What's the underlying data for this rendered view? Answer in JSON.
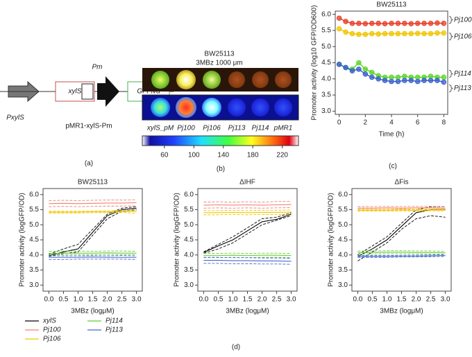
{
  "panel_labels": [
    "(a)",
    "(b)",
    "(c)",
    "(d)"
  ],
  "panel_a": {
    "genes": [
      "xylS",
      "GFPlva"
    ],
    "promoters": [
      "Pm",
      "PxylS"
    ],
    "plasmid": "pMR1-xylS-Pm"
  },
  "panel_b": {
    "title": "BW25113",
    "condition": "3MBz 1000 μm",
    "wells": [
      "xylS_pM",
      "Pj100",
      "Pj106",
      "Pj113",
      "Pj114",
      "pMR1"
    ],
    "colorbar": {
      "lim": [
        30,
        242
      ],
      "ticks": [
        60,
        100,
        140,
        180,
        220
      ]
    }
  },
  "chart_data": [
    {
      "type": "line",
      "title": "BW25113",
      "xlabel": "Time (h)",
      "ylabel": "Promoter activity (log10 GFP/OD600)",
      "legend": "right",
      "markers": true,
      "x": [
        0,
        0.5,
        1,
        1.5,
        2,
        2.5,
        3,
        3.5,
        4,
        4.5,
        5,
        5.5,
        6,
        6.5,
        7,
        7.5,
        8
      ],
      "xlim": [
        -0.3,
        8.3
      ],
      "xticks": [
        0,
        2,
        4,
        6,
        8
      ],
      "ylim": [
        2.9,
        6.1
      ],
      "yticks": [
        {
          "value": 3,
          "label": "3.0"
        },
        {
          "value": 3.5,
          "label": "3.5"
        },
        {
          "value": 4,
          "label": "4.0"
        },
        {
          "value": 4.5,
          "label": "4.5"
        },
        {
          "value": 5,
          "label": "5.0"
        },
        {
          "value": 5.5,
          "label": "5.5"
        },
        {
          "value": 6,
          "label": "6.0"
        }
      ],
      "series": [
        {
          "name": "Pj100",
          "color": "#e8402a",
          "values": [
            5.88,
            5.78,
            5.72,
            5.72,
            5.71,
            5.72,
            5.72,
            5.71,
            5.72,
            5.72,
            5.72,
            5.71,
            5.72,
            5.72,
            5.72,
            5.73,
            5.72
          ]
        },
        {
          "name": "Pj106",
          "color": "#f2c500",
          "values": [
            5.55,
            5.45,
            5.4,
            5.38,
            5.38,
            5.4,
            5.39,
            5.4,
            5.4,
            5.4,
            5.4,
            5.4,
            5.41,
            5.4,
            5.4,
            5.42,
            5.42
          ]
        },
        {
          "name": "Pj114",
          "color": "#5cd62a",
          "values": [
            4.45,
            4.35,
            4.3,
            4.5,
            4.3,
            4.2,
            4.1,
            4.05,
            4.05,
            4.05,
            4.08,
            4.05,
            4.05,
            4.05,
            4.08,
            4.05,
            4.05
          ]
        },
        {
          "name": "Pj113",
          "color": "#3b5fd0",
          "values": [
            4.45,
            4.35,
            4.25,
            4.3,
            4.15,
            4.05,
            4.0,
            3.95,
            3.92,
            3.92,
            3.95,
            3.95,
            3.92,
            3.95,
            3.95,
            3.95,
            3.9
          ]
        }
      ]
    },
    {
      "type": "line",
      "title": "BW25113",
      "xlabel": "3MBz (logμM)",
      "ylabel": "Promoter activity (logGFP/OD)",
      "legend": "bottom",
      "x": [
        0,
        0.5,
        1,
        1.5,
        2,
        2.5,
        3
      ],
      "xlim": [
        -0.2,
        3.2
      ],
      "xticks": [
        {
          "value": 0,
          "label": "0.0"
        },
        {
          "value": 0.5,
          "label": "0.5"
        },
        {
          "value": 1,
          "label": "1.0"
        },
        {
          "value": 1.5,
          "label": "1.5"
        },
        {
          "value": 2,
          "label": "2.0"
        },
        {
          "value": 2.5,
          "label": "2.5"
        },
        {
          "value": 3,
          "label": "3.0"
        }
      ],
      "ylim": [
        2.8,
        6.2
      ],
      "yticks": [
        {
          "value": 3,
          "label": "3.0"
        },
        {
          "value": 3.5,
          "label": "3.5"
        },
        {
          "value": 4,
          "label": "4.0"
        },
        {
          "value": 4.5,
          "label": "4.5"
        },
        {
          "value": 5,
          "label": "5.0"
        },
        {
          "value": 5.5,
          "label": "5.5"
        },
        {
          "value": 6,
          "label": "6.0"
        }
      ],
      "series": [
        {
          "name": "xylS",
          "color": "#000000",
          "values": [
            3.98,
            4.1,
            4.2,
            4.75,
            5.3,
            5.5,
            5.55
          ],
          "lower": [
            3.95,
            4.05,
            4.1,
            4.65,
            5.2,
            5.45,
            5.5
          ],
          "upper": [
            4.02,
            4.2,
            4.35,
            4.85,
            5.35,
            5.55,
            5.6
          ]
        },
        {
          "name": "Pj100",
          "color": "#f08070",
          "values": [
            5.7,
            5.71,
            5.7,
            5.71,
            5.72,
            5.72,
            5.73
          ],
          "lower": [
            5.6,
            5.61,
            5.6,
            5.61,
            5.62,
            5.62,
            5.63
          ],
          "upper": [
            5.8,
            5.81,
            5.8,
            5.81,
            5.82,
            5.82,
            5.83
          ]
        },
        {
          "name": "Pj106",
          "color": "#f2c500",
          "values": [
            5.42,
            5.42,
            5.42,
            5.43,
            5.43,
            5.44,
            5.44
          ],
          "lower": [
            5.39,
            5.39,
            5.39,
            5.4,
            5.4,
            5.41,
            5.38
          ],
          "upper": [
            5.45,
            5.45,
            5.45,
            5.46,
            5.46,
            5.47,
            5.47
          ]
        },
        {
          "name": "Pj114",
          "color": "#66cc33",
          "values": [
            4.05,
            4.06,
            4.06,
            4.06,
            4.07,
            4.06,
            4.06
          ],
          "lower": [
            4.0,
            4.01,
            4.01,
            4.01,
            4.02,
            4.01,
            4.01
          ],
          "upper": [
            4.12,
            4.13,
            4.13,
            4.12,
            4.13,
            4.13,
            4.12
          ]
        },
        {
          "name": "Pj113",
          "color": "#4466cc",
          "values": [
            3.92,
            3.92,
            3.92,
            3.93,
            3.92,
            3.92,
            3.92
          ],
          "lower": [
            3.85,
            3.85,
            3.86,
            3.86,
            3.86,
            3.86,
            3.85
          ],
          "upper": [
            3.97,
            3.97,
            3.97,
            3.98,
            3.97,
            3.98,
            3.97
          ]
        }
      ]
    },
    {
      "type": "line",
      "title": "ΔIHF",
      "xlabel": "3MBz (logμM)",
      "ylabel": "Promoter activity (logGFP/OD)",
      "x": [
        0,
        0.5,
        1,
        1.5,
        2,
        2.5,
        3
      ],
      "xlim": [
        -0.2,
        3.2
      ],
      "xticks": [
        {
          "value": 0,
          "label": "0.0"
        },
        {
          "value": 0.5,
          "label": "0.5"
        },
        {
          "value": 1,
          "label": "1.0"
        },
        {
          "value": 1.5,
          "label": "1.5"
        },
        {
          "value": 2,
          "label": "2.0"
        },
        {
          "value": 2.5,
          "label": "2.5"
        },
        {
          "value": 3,
          "label": "3.0"
        }
      ],
      "ylim": [
        2.8,
        6.2
      ],
      "yticks": [
        {
          "value": 3,
          "label": "3.0"
        },
        {
          "value": 3.5,
          "label": "3.5"
        },
        {
          "value": 4,
          "label": "4.0"
        },
        {
          "value": 4.5,
          "label": "4.5"
        },
        {
          "value": 5,
          "label": "5.0"
        },
        {
          "value": 5.5,
          "label": "5.5"
        },
        {
          "value": 6,
          "label": "6.0"
        }
      ],
      "series": [
        {
          "name": "xylS",
          "color": "#000000",
          "values": [
            4.08,
            4.3,
            4.5,
            4.8,
            5.1,
            5.18,
            5.35
          ],
          "lower": [
            4.05,
            4.2,
            4.4,
            4.7,
            5.0,
            5.15,
            5.3
          ],
          "upper": [
            4.1,
            4.35,
            4.6,
            4.9,
            5.2,
            5.25,
            5.4
          ]
        },
        {
          "name": "Pj100",
          "color": "#f08070",
          "values": [
            5.65,
            5.66,
            5.65,
            5.66,
            5.65,
            5.66,
            5.67
          ],
          "lower": [
            5.55,
            5.56,
            5.55,
            5.56,
            5.55,
            5.56,
            5.57
          ],
          "upper": [
            5.75,
            5.76,
            5.75,
            5.76,
            5.75,
            5.77,
            5.78
          ]
        },
        {
          "name": "Pj106",
          "color": "#f2c500",
          "values": [
            5.4,
            5.4,
            5.41,
            5.4,
            5.41,
            5.41,
            5.42
          ],
          "lower": [
            5.33,
            5.33,
            5.34,
            5.33,
            5.34,
            5.34,
            5.35
          ],
          "upper": [
            5.47,
            5.47,
            5.48,
            5.47,
            5.48,
            5.48,
            5.49
          ]
        },
        {
          "name": "Pj114",
          "color": "#66cc33",
          "values": [
            3.98,
            3.98,
            3.99,
            3.98,
            3.99,
            3.99,
            3.98
          ],
          "lower": [
            3.91,
            3.91,
            3.92,
            3.91,
            3.92,
            3.92,
            3.91
          ],
          "upper": [
            4.05,
            4.05,
            4.06,
            4.05,
            4.06,
            4.06,
            4.05
          ]
        },
        {
          "name": "Pj113",
          "color": "#4466cc",
          "values": [
            3.82,
            3.82,
            3.81,
            3.81,
            3.8,
            3.8,
            3.79
          ],
          "lower": [
            3.72,
            3.72,
            3.71,
            3.71,
            3.7,
            3.7,
            3.69
          ],
          "upper": [
            3.92,
            3.92,
            3.91,
            3.91,
            3.9,
            3.9,
            3.89
          ]
        }
      ]
    },
    {
      "type": "line",
      "title": "ΔFis",
      "xlabel": "3MBz (logμM)",
      "ylabel": "Promoter activity (logGFP/OD)",
      "x": [
        0,
        0.5,
        1,
        1.5,
        2,
        2.5,
        3
      ],
      "xlim": [
        -0.2,
        3.2
      ],
      "xticks": [
        {
          "value": 0,
          "label": "0.0"
        },
        {
          "value": 0.5,
          "label": "0.5"
        },
        {
          "value": 1,
          "label": "1.0"
        },
        {
          "value": 1.5,
          "label": "1.5"
        },
        {
          "value": 2,
          "label": "2.0"
        },
        {
          "value": 2.5,
          "label": "2.5"
        },
        {
          "value": 3,
          "label": "3.0"
        }
      ],
      "ylim": [
        2.8,
        6.2
      ],
      "yticks": [
        {
          "value": 3,
          "label": "3.0"
        },
        {
          "value": 3.5,
          "label": "3.5"
        },
        {
          "value": 4,
          "label": "4.0"
        },
        {
          "value": 4.5,
          "label": "4.5"
        },
        {
          "value": 5,
          "label": "5.0"
        },
        {
          "value": 5.5,
          "label": "5.5"
        },
        {
          "value": 6,
          "label": "6.0"
        }
      ],
      "series": [
        {
          "name": "xylS",
          "color": "#000000",
          "values": [
            3.95,
            4.2,
            4.5,
            4.95,
            5.4,
            5.5,
            5.5
          ],
          "lower": [
            3.8,
            4.1,
            4.4,
            4.85,
            5.2,
            5.3,
            5.25
          ],
          "upper": [
            4.0,
            4.3,
            4.6,
            5.05,
            5.5,
            5.6,
            5.6
          ]
        },
        {
          "name": "Pj100",
          "color": "#f08070",
          "values": [
            5.55,
            5.55,
            5.56,
            5.55,
            5.56,
            5.56,
            5.55
          ],
          "lower": [
            5.5,
            5.5,
            5.51,
            5.5,
            5.51,
            5.51,
            5.5
          ],
          "upper": [
            5.6,
            5.6,
            5.61,
            5.6,
            5.61,
            5.61,
            5.6
          ]
        },
        {
          "name": "Pj106",
          "color": "#f2c500",
          "values": [
            5.48,
            5.48,
            5.48,
            5.49,
            5.48,
            5.49,
            5.49
          ],
          "lower": [
            5.45,
            5.45,
            5.45,
            5.46,
            5.45,
            5.46,
            5.46
          ],
          "upper": [
            5.51,
            5.51,
            5.51,
            5.52,
            5.51,
            5.52,
            5.52
          ]
        },
        {
          "name": "Pj114",
          "color": "#66cc33",
          "values": [
            4.08,
            4.08,
            4.09,
            4.09,
            4.08,
            4.08,
            4.07
          ],
          "lower": [
            4.03,
            4.03,
            4.04,
            4.04,
            4.03,
            4.03,
            4.02
          ],
          "upper": [
            4.13,
            4.13,
            4.14,
            4.14,
            4.13,
            4.13,
            4.12
          ]
        },
        {
          "name": "Pj113",
          "color": "#4466cc",
          "values": [
            3.95,
            3.95,
            3.95,
            3.96,
            3.96,
            3.97,
            3.98
          ],
          "lower": [
            3.92,
            3.92,
            3.92,
            3.93,
            3.93,
            3.94,
            3.95
          ],
          "upper": [
            3.98,
            3.98,
            3.98,
            3.99,
            3.99,
            4.0,
            4.01
          ]
        }
      ]
    }
  ]
}
